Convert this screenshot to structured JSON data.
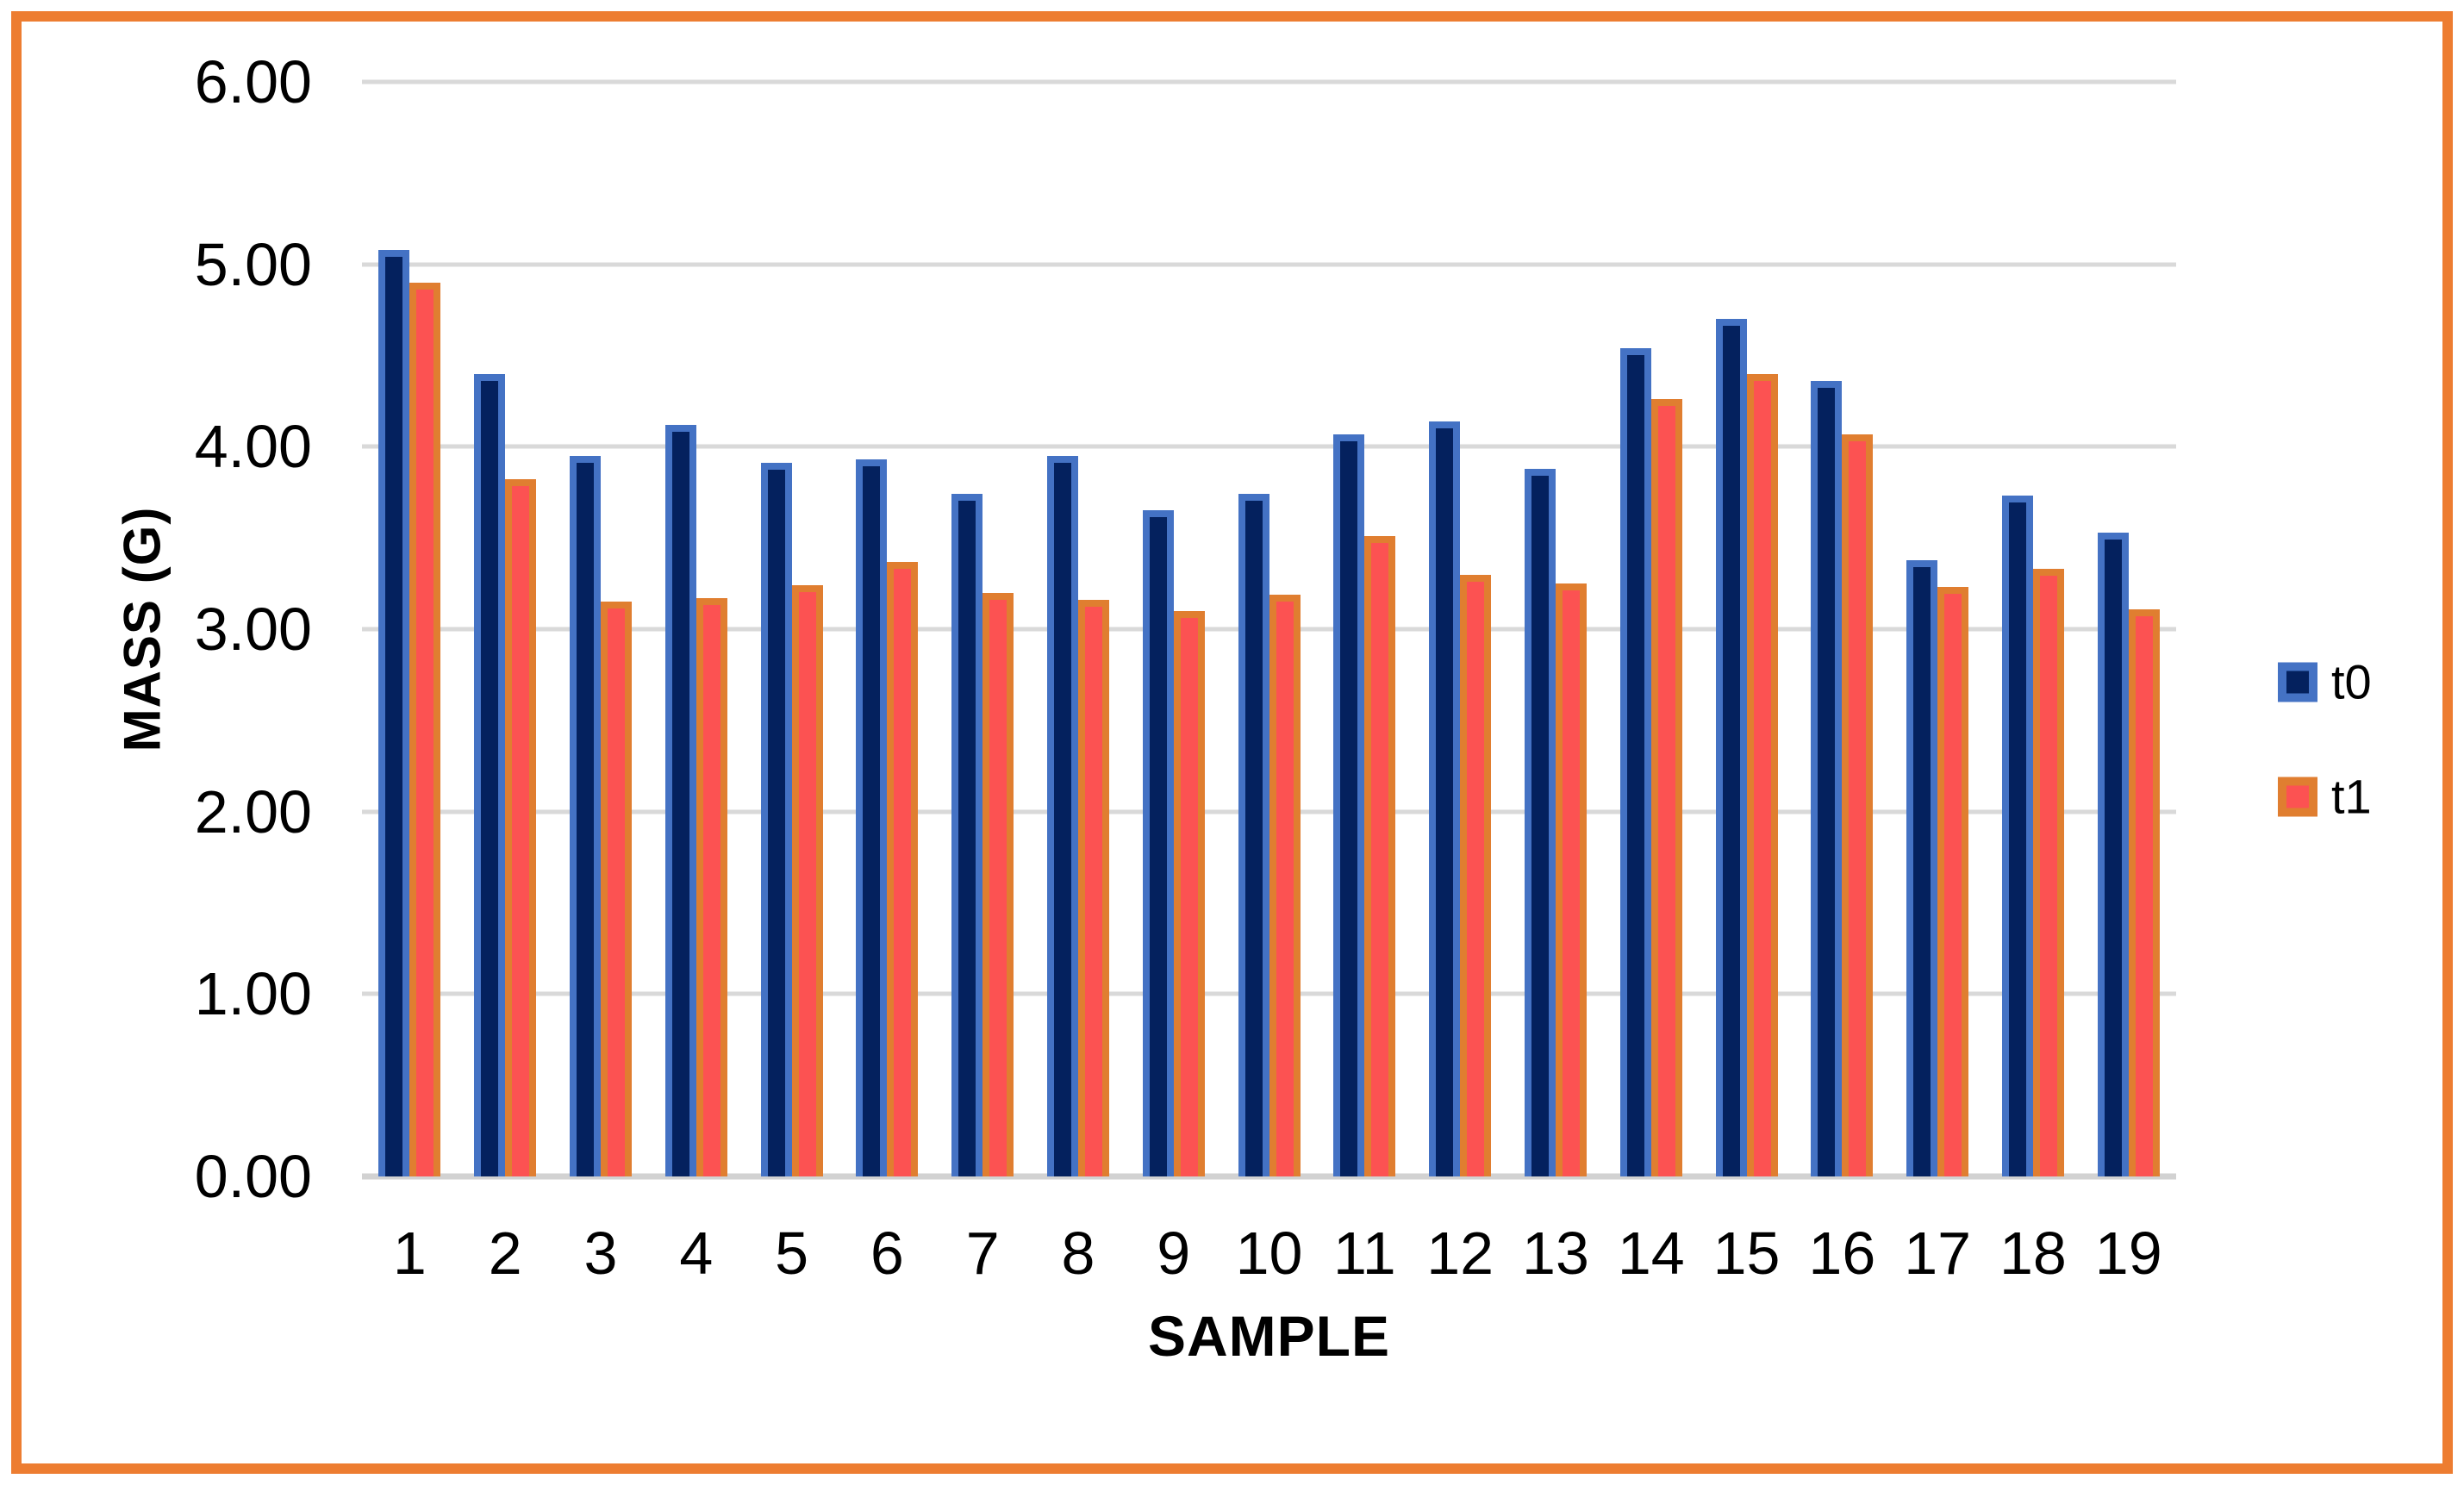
{
  "frame": {
    "border_color": "#ED7D31"
  },
  "colors": {
    "t0_fill": "#04215E",
    "t0_stroke": "#4472C4",
    "t1_fill": "#FC5252",
    "t1_stroke": "#E07E30",
    "gridline": "#D9D9D9",
    "axis_line": "#D2D2D2",
    "text": "#000000"
  },
  "chart_data": {
    "type": "bar",
    "title": "",
    "xlabel": "SAMPLE",
    "ylabel": "MASS (G)",
    "categories": [
      "1",
      "2",
      "3",
      "4",
      "5",
      "6",
      "7",
      "8",
      "9",
      "10",
      "11",
      "12",
      "13",
      "14",
      "15",
      "16",
      "17",
      "18",
      "19"
    ],
    "series": [
      {
        "name": "t0",
        "values": [
          5.08,
          4.4,
          3.95,
          4.12,
          3.91,
          3.93,
          3.74,
          3.95,
          3.65,
          3.74,
          4.07,
          4.14,
          3.88,
          4.54,
          4.7,
          4.36,
          3.38,
          3.73,
          3.53
        ]
      },
      {
        "name": "t1",
        "values": [
          4.9,
          3.82,
          3.15,
          3.17,
          3.24,
          3.37,
          3.2,
          3.16,
          3.1,
          3.19,
          3.51,
          3.3,
          3.25,
          4.26,
          4.4,
          4.07,
          3.23,
          3.33,
          3.11
        ]
      }
    ],
    "ylim": [
      0,
      6
    ],
    "ytick_labels": [
      "0.00",
      "1.00",
      "2.00",
      "3.00",
      "4.00",
      "5.00",
      "6.00"
    ],
    "grid": true,
    "legend_position": "right"
  }
}
